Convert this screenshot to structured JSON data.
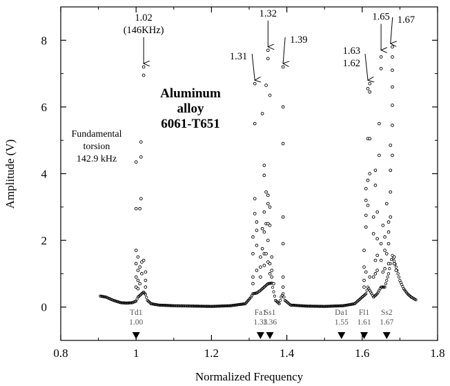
{
  "chart_data": {
    "type": "scatter",
    "xlabel": "Normalized Frequency",
    "ylabel": "Amplitude (V)",
    "xlim": [
      0.8,
      1.8
    ],
    "ylim": [
      -1,
      9
    ],
    "x_ticks": [
      {
        "value": 0.8,
        "label": "0.8"
      },
      {
        "value": 1.0,
        "label": "1"
      },
      {
        "value": 1.2,
        "label": "1.2"
      },
      {
        "value": 1.4,
        "label": "1.4"
      },
      {
        "value": 1.6,
        "label": "1.6"
      },
      {
        "value": 1.8,
        "label": "1.8"
      }
    ],
    "y_ticks": [
      {
        "value": 0,
        "label": "0"
      },
      {
        "value": 2,
        "label": "2"
      },
      {
        "value": 4,
        "label": "4"
      },
      {
        "value": 6,
        "label": "6"
      },
      {
        "value": 8,
        "label": "8"
      }
    ],
    "sample_label": [
      "Aluminum",
      "alloy",
      "6061-T651"
    ],
    "inset_label": [
      "Fundamental",
      "torsion",
      "142.9 kHz"
    ],
    "peak_annotations": [
      {
        "lines": [
          "1.02",
          "(146KHz)"
        ],
        "x": 1.02,
        "y": 7.2,
        "text_side": "above"
      },
      {
        "lines": [
          "1.31"
        ],
        "x": 1.315,
        "y": 6.7,
        "text_side": "left"
      },
      {
        "lines": [
          "1.32"
        ],
        "x": 1.35,
        "y": 7.7,
        "text_side": "above"
      },
      {
        "lines": [
          "1.39"
        ],
        "x": 1.39,
        "y": 7.2,
        "text_side": "right"
      },
      {
        "lines": [
          "1.63",
          "1.62"
        ],
        "x": 1.615,
        "y": 6.7,
        "text_side": "left"
      },
      {
        "lines": [
          "1.65"
        ],
        "x": 1.65,
        "y": 7.6,
        "text_side": "above"
      },
      {
        "lines": [
          "1.67"
        ],
        "x": 1.675,
        "y": 7.8,
        "text_side": "right"
      }
    ],
    "mode_markers": [
      {
        "name": "Td1",
        "value": "1.00",
        "x": 1.0
      },
      {
        "name": "Fa1",
        "value": "1.33",
        "x": 1.33
      },
      {
        "name": "Ss1",
        "value": "1.36",
        "x": 1.355
      },
      {
        "name": "Da1",
        "value": "1.55",
        "x": 1.545
      },
      {
        "name": "Fl1",
        "value": "1.61",
        "x": 1.605
      },
      {
        "name": "Ss2",
        "value": "1.67",
        "x": 1.665
      }
    ],
    "baseline": [
      [
        0.905,
        0.33
      ],
      [
        0.92,
        0.3
      ],
      [
        0.94,
        0.2
      ],
      [
        0.96,
        0.13
      ],
      [
        0.975,
        0.12
      ],
      [
        0.99,
        0.13
      ],
      [
        1.0,
        0.18
      ],
      [
        1.005,
        0.3
      ],
      [
        1.01,
        0.35
      ],
      [
        1.015,
        0.4
      ],
      [
        1.02,
        0.45
      ],
      [
        1.025,
        0.38
      ],
      [
        1.03,
        0.2
      ],
      [
        1.04,
        0.1
      ],
      [
        1.06,
        0.06
      ],
      [
        1.1,
        0.04
      ],
      [
        1.15,
        0.03
      ],
      [
        1.2,
        0.02
      ],
      [
        1.25,
        0.04
      ],
      [
        1.29,
        0.1
      ],
      [
        1.305,
        0.3
      ],
      [
        1.31,
        0.4
      ],
      [
        1.32,
        0.42
      ],
      [
        1.33,
        0.5
      ],
      [
        1.34,
        0.6
      ],
      [
        1.35,
        0.7
      ],
      [
        1.36,
        0.72
      ],
      [
        1.37,
        0.2
      ],
      [
        1.38,
        0.1
      ],
      [
        1.385,
        0.3
      ],
      [
        1.39,
        0.4
      ],
      [
        1.395,
        0.2
      ],
      [
        1.41,
        0.06
      ],
      [
        1.45,
        0.03
      ],
      [
        1.5,
        0.02
      ],
      [
        1.55,
        0.04
      ],
      [
        1.58,
        0.1
      ],
      [
        1.6,
        0.3
      ],
      [
        1.61,
        0.4
      ],
      [
        1.615,
        0.6
      ],
      [
        1.62,
        0.5
      ],
      [
        1.63,
        0.3
      ],
      [
        1.64,
        0.4
      ],
      [
        1.65,
        0.6
      ],
      [
        1.66,
        0.6
      ],
      [
        1.67,
        1.0
      ],
      [
        1.675,
        1.3
      ],
      [
        1.68,
        1.55
      ],
      [
        1.69,
        1.2
      ],
      [
        1.7,
        0.8
      ],
      [
        1.71,
        0.55
      ],
      [
        1.72,
        0.4
      ],
      [
        1.73,
        0.3
      ],
      [
        1.745,
        0.2
      ]
    ],
    "peak_points": [
      [
        1.0,
        0.6
      ],
      [
        1.0,
        0.9
      ],
      [
        1.0,
        1.3
      ],
      [
        1.0,
        1.7
      ],
      [
        1.0,
        2.95
      ],
      [
        1.0,
        4.35
      ],
      [
        1.005,
        0.55
      ],
      [
        1.005,
        0.8
      ],
      [
        1.005,
        1.1
      ],
      [
        1.005,
        1.5
      ],
      [
        1.01,
        0.7
      ],
      [
        1.01,
        1.2
      ],
      [
        1.01,
        2.95
      ],
      [
        1.013,
        4.5
      ],
      [
        1.013,
        4.95
      ],
      [
        1.013,
        3.25
      ],
      [
        1.015,
        1.0
      ],
      [
        1.015,
        1.35
      ],
      [
        1.02,
        1.4
      ],
      [
        1.02,
        6.95
      ],
      [
        1.02,
        7.2
      ],
      [
        1.025,
        0.6
      ],
      [
        1.025,
        0.8
      ],
      [
        1.025,
        1.05
      ],
      [
        1.31,
        0.7
      ],
      [
        1.31,
        0.9
      ],
      [
        1.31,
        1.6
      ],
      [
        1.31,
        2.1
      ],
      [
        1.315,
        2.8
      ],
      [
        1.315,
        3.25
      ],
      [
        1.315,
        5.5
      ],
      [
        1.315,
        6.7
      ],
      [
        1.32,
        1.1
      ],
      [
        1.32,
        1.85
      ],
      [
        1.32,
        2.3
      ],
      [
        1.32,
        2.55
      ],
      [
        1.33,
        0.9
      ],
      [
        1.33,
        1.2
      ],
      [
        1.33,
        1.5
      ],
      [
        1.335,
        1.75
      ],
      [
        1.335,
        2.35
      ],
      [
        1.335,
        5.8
      ],
      [
        1.34,
        1.25
      ],
      [
        1.34,
        1.6
      ],
      [
        1.34,
        2.25
      ],
      [
        1.34,
        2.85
      ],
      [
        1.34,
        3.95
      ],
      [
        1.34,
        4.25
      ],
      [
        1.345,
        1.6
      ],
      [
        1.345,
        2.5
      ],
      [
        1.345,
        3.45
      ],
      [
        1.345,
        6.65
      ],
      [
        1.35,
        1.35
      ],
      [
        1.35,
        2.0
      ],
      [
        1.35,
        2.5
      ],
      [
        1.35,
        3.1
      ],
      [
        1.35,
        3.35
      ],
      [
        1.35,
        7.45
      ],
      [
        1.35,
        7.7
      ],
      [
        1.355,
        1.0
      ],
      [
        1.355,
        1.3
      ],
      [
        1.355,
        2.45
      ],
      [
        1.355,
        3.0
      ],
      [
        1.355,
        6.35
      ],
      [
        1.36,
        0.9
      ],
      [
        1.36,
        1.1
      ],
      [
        1.36,
        1.5
      ],
      [
        1.365,
        0.7
      ],
      [
        1.39,
        1.9
      ],
      [
        1.39,
        2.7
      ],
      [
        1.39,
        4.9
      ],
      [
        1.39,
        6.0
      ],
      [
        1.39,
        7.2
      ],
      [
        1.39,
        0.9
      ],
      [
        1.39,
        0.6
      ],
      [
        1.605,
        0.6
      ],
      [
        1.605,
        0.8
      ],
      [
        1.605,
        1.2
      ],
      [
        1.605,
        1.7
      ],
      [
        1.61,
        1.05
      ],
      [
        1.61,
        2.4
      ],
      [
        1.61,
        2.75
      ],
      [
        1.61,
        3.2
      ],
      [
        1.61,
        3.55
      ],
      [
        1.615,
        3.05
      ],
      [
        1.615,
        3.8
      ],
      [
        1.615,
        5.05
      ],
      [
        1.615,
        6.55
      ],
      [
        1.62,
        4.0
      ],
      [
        1.62,
        5.05
      ],
      [
        1.62,
        6.7
      ],
      [
        1.62,
        6.45
      ],
      [
        1.62,
        0.9
      ],
      [
        1.63,
        0.9
      ],
      [
        1.63,
        2.2
      ],
      [
        1.63,
        2.7
      ],
      [
        1.635,
        1.0
      ],
      [
        1.635,
        1.4
      ],
      [
        1.635,
        3.65
      ],
      [
        1.635,
        4.1
      ],
      [
        1.64,
        1.1
      ],
      [
        1.64,
        1.55
      ],
      [
        1.64,
        2.05
      ],
      [
        1.64,
        2.85
      ],
      [
        1.645,
        4.55
      ],
      [
        1.645,
        5.5
      ],
      [
        1.65,
        1.4
      ],
      [
        1.65,
        1.9
      ],
      [
        1.65,
        7.15
      ],
      [
        1.65,
        7.5
      ],
      [
        1.655,
        1.05
      ],
      [
        1.655,
        2.45
      ],
      [
        1.66,
        1.15
      ],
      [
        1.66,
        1.7
      ],
      [
        1.66,
        2.1
      ],
      [
        1.665,
        1.6
      ],
      [
        1.665,
        3.1
      ],
      [
        1.67,
        1.3
      ],
      [
        1.67,
        1.9
      ],
      [
        1.67,
        2.25
      ],
      [
        1.67,
        2.55
      ],
      [
        1.675,
        2.7
      ],
      [
        1.675,
        3.45
      ],
      [
        1.675,
        4.1
      ],
      [
        1.675,
        4.85
      ],
      [
        1.68,
        4.55
      ],
      [
        1.68,
        5.45
      ],
      [
        1.68,
        6.05
      ],
      [
        1.68,
        6.6
      ],
      [
        1.68,
        7.1
      ],
      [
        1.68,
        7.5
      ],
      [
        1.68,
        7.8
      ],
      [
        1.685,
        1.5
      ],
      [
        1.685,
        1.3
      ],
      [
        1.69,
        1.1
      ]
    ]
  }
}
